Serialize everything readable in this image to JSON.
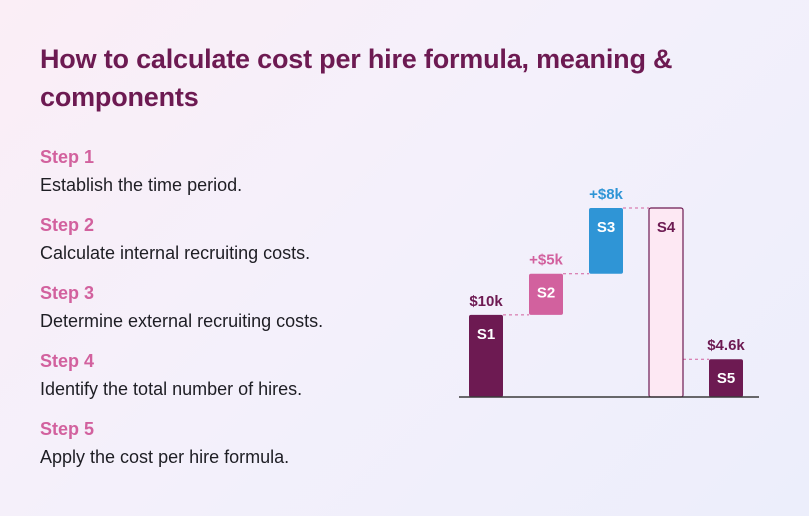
{
  "title": "How to calculate cost per hire formula, meaning & components",
  "steps": [
    {
      "label": "Step 1",
      "text": "Establish the time period."
    },
    {
      "label": "Step 2",
      "text": "Calculate internal recruiting costs."
    },
    {
      "label": "Step 3",
      "text": "Determine external recruiting costs."
    },
    {
      "label": "Step 4",
      "text": "Identify the total number of hires."
    },
    {
      "label": "Step 5",
      "text": "Apply the cost per hire formula."
    }
  ],
  "colors": {
    "title": "#6d1a52",
    "step_label": "#d2619e",
    "body_text": "#1e1e24",
    "s1": "#6d1a52",
    "s2": "#d2619e",
    "s3": "#2f95d6",
    "s4_fill": "#fde8f3",
    "s4_stroke": "#6d1a52",
    "s5": "#6d1a52",
    "connector": "#d2619e"
  },
  "chart_data": {
    "type": "bar",
    "subtype": "waterfall",
    "categories": [
      "S1",
      "S2",
      "S3",
      "S4",
      "S5"
    ],
    "bars": [
      {
        "label": "S1",
        "base": 0,
        "top": 10,
        "value_label": "$10k",
        "style": "s1"
      },
      {
        "label": "S2",
        "base": 10,
        "top": 15,
        "value_label": "+$5k",
        "style": "s2"
      },
      {
        "label": "S3",
        "base": 15,
        "top": 23,
        "value_label": "+$8k",
        "style": "s3"
      },
      {
        "label": "S4",
        "base": 0,
        "top": 23,
        "value_label": "",
        "style": "s4"
      },
      {
        "label": "S5",
        "base": 0,
        "top": 4.6,
        "value_label": "$4.6k",
        "style": "s5"
      }
    ],
    "ylim": [
      0,
      23
    ],
    "grid": false,
    "xlabel": "",
    "ylabel": ""
  }
}
